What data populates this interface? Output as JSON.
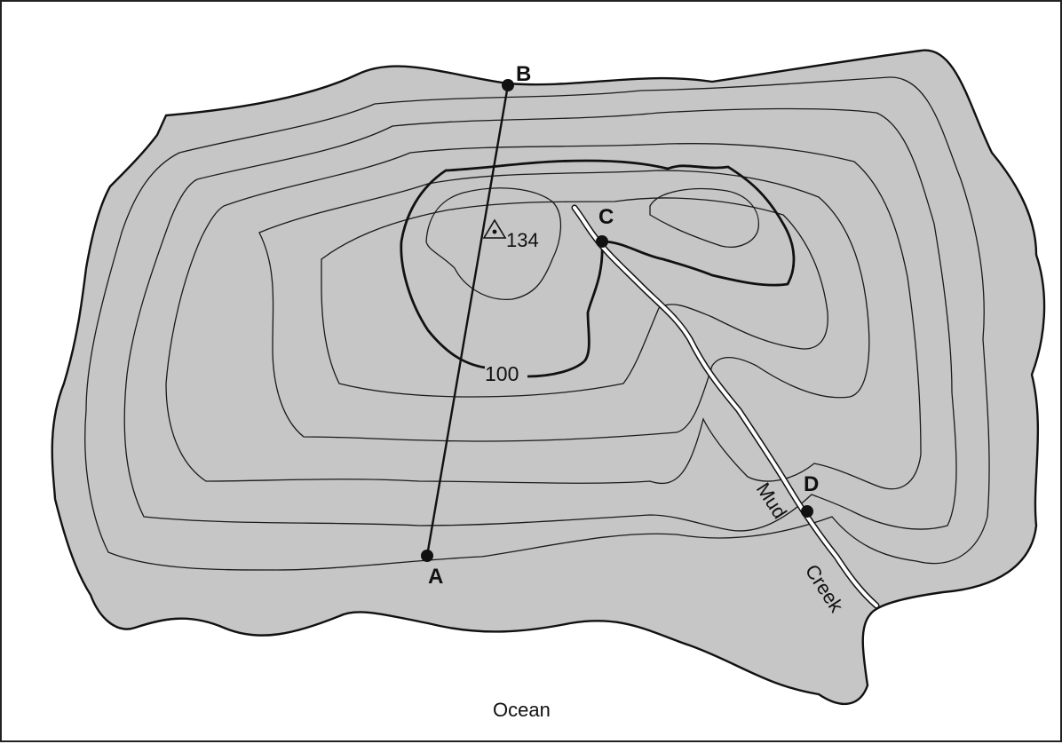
{
  "map": {
    "points": [
      {
        "id": "A",
        "label": "A"
      },
      {
        "id": "B",
        "label": "B"
      },
      {
        "id": "C",
        "label": "C"
      },
      {
        "id": "D",
        "label": "D"
      }
    ],
    "summit_elevation": "134",
    "index_contour_label": "100",
    "creek_name_part1": "Mud",
    "creek_name_part2": "Creek",
    "water_label": "Ocean",
    "colors": {
      "land": "#c6c6c6",
      "water": "#ffffff",
      "lines": "#111111"
    }
  }
}
